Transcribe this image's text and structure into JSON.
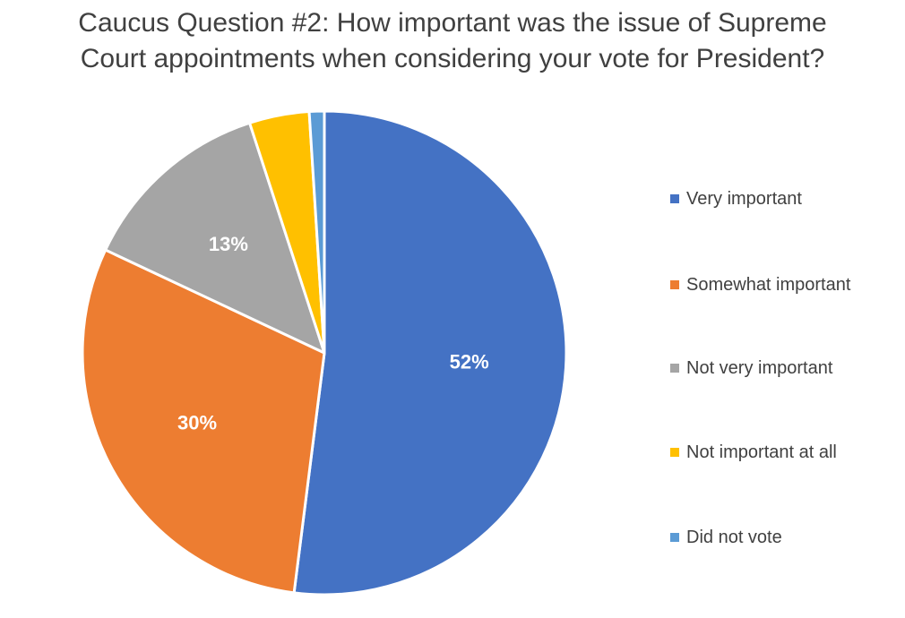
{
  "chart_data": {
    "type": "pie",
    "title": "Caucus Question #2: How important was the issue of Supreme Court appointments when considering your vote for President?",
    "title_lines": [
      "Caucus Question #2: How important was the issue of Supreme",
      "Court appointments when considering your vote for President?"
    ],
    "categories": [
      "Very important",
      "Somewhat important",
      "Not very important",
      "Not important at all",
      "Did not vote"
    ],
    "values": [
      52,
      30,
      13,
      4,
      1
    ],
    "data_labels": [
      "52%",
      "30%",
      "13%",
      "",
      ""
    ],
    "unit": "%",
    "colors": [
      "#4472C4",
      "#ED7D31",
      "#A5A5A5",
      "#FFC000",
      "#5B9BD5"
    ],
    "start_angle": "12 o'clock",
    "direction": "clockwise",
    "legend_position": "right"
  }
}
